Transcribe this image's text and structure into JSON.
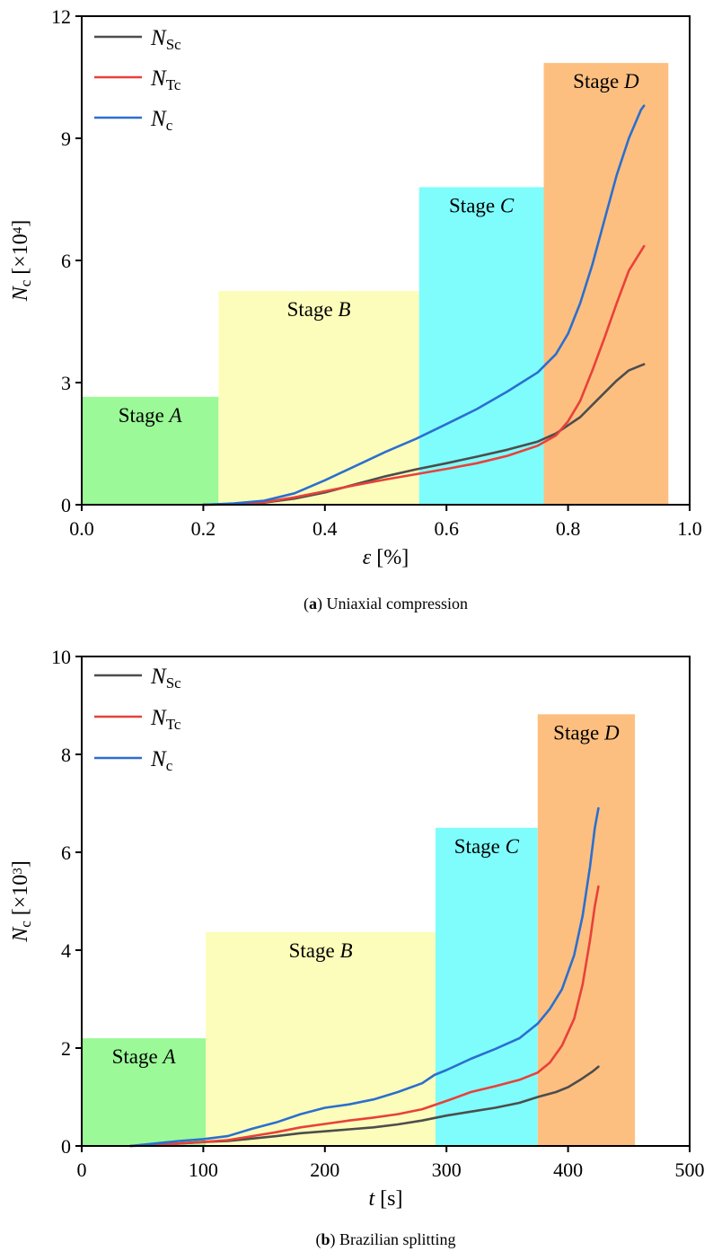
{
  "chart_data": [
    {
      "type": "line",
      "caption": {
        "label": "a",
        "text": " Uniaxial compression"
      },
      "xlabel": {
        "symbol": "ε",
        "unit": " [%]"
      },
      "ylabel": {
        "symbol": "N",
        "sub": "c",
        "unit_prefix": " [×10",
        "exp": "4",
        "unit_suffix": "]"
      },
      "xlim": [
        0,
        1.0
      ],
      "ylim": [
        0,
        12
      ],
      "xticks": [
        "0.0",
        "0.2",
        "0.4",
        "0.6",
        "0.8",
        "1.0"
      ],
      "xtick_values": [
        0,
        0.2,
        0.4,
        0.6,
        0.8,
        1.0
      ],
      "yticks": [
        "0",
        "3",
        "6",
        "9",
        "12"
      ],
      "ytick_values": [
        0,
        3,
        6,
        9,
        12
      ],
      "legend_position": "top-left",
      "stages": [
        {
          "name": "A",
          "x0": 0.0,
          "x1": 0.225,
          "y": 2.65,
          "color": "#9bf997"
        },
        {
          "name": "B",
          "x0": 0.225,
          "x1": 0.555,
          "y": 5.25,
          "color": "#fdfdbb"
        },
        {
          "name": "C",
          "x0": 0.555,
          "x1": 0.76,
          "y": 7.8,
          "color": "#7ffdfd"
        },
        {
          "name": "D",
          "x0": 0.76,
          "x1": 0.965,
          "y": 10.85,
          "color": "#fdbf80"
        }
      ],
      "series": [
        {
          "name": "N",
          "sub": "Sc",
          "color": "#4d4d4d",
          "x": [
            0.2,
            0.25,
            0.3,
            0.35,
            0.4,
            0.45,
            0.5,
            0.55,
            0.6,
            0.65,
            0.7,
            0.75,
            0.78,
            0.8,
            0.82,
            0.85,
            0.88,
            0.9,
            0.925
          ],
          "y": [
            0.0,
            0.01,
            0.05,
            0.15,
            0.3,
            0.5,
            0.7,
            0.87,
            1.02,
            1.18,
            1.35,
            1.55,
            1.75,
            1.95,
            2.15,
            2.6,
            3.05,
            3.3,
            3.45
          ]
        },
        {
          "name": "N",
          "sub": "Tc",
          "color": "#e8413a",
          "x": [
            0.2,
            0.25,
            0.3,
            0.35,
            0.4,
            0.45,
            0.5,
            0.55,
            0.6,
            0.65,
            0.7,
            0.75,
            0.78,
            0.8,
            0.82,
            0.84,
            0.86,
            0.88,
            0.9,
            0.925
          ],
          "y": [
            0.0,
            0.01,
            0.06,
            0.18,
            0.33,
            0.48,
            0.62,
            0.75,
            0.88,
            1.02,
            1.2,
            1.45,
            1.7,
            2.05,
            2.55,
            3.3,
            4.1,
            4.95,
            5.75,
            6.35
          ]
        },
        {
          "name": "N",
          "sub": "c",
          "color": "#2b6fcf",
          "x": [
            0.2,
            0.25,
            0.3,
            0.35,
            0.4,
            0.45,
            0.5,
            0.55,
            0.6,
            0.65,
            0.7,
            0.75,
            0.78,
            0.8,
            0.82,
            0.84,
            0.86,
            0.88,
            0.9,
            0.92,
            0.925
          ],
          "y": [
            0.0,
            0.03,
            0.1,
            0.28,
            0.6,
            0.95,
            1.3,
            1.62,
            1.98,
            2.35,
            2.78,
            3.25,
            3.7,
            4.2,
            4.95,
            5.9,
            7.0,
            8.1,
            9.0,
            9.7,
            9.8
          ]
        }
      ]
    },
    {
      "type": "line",
      "caption": {
        "label": "b",
        "text": " Brazilian splitting"
      },
      "xlabel": {
        "symbol": "t",
        "unit": " [s]"
      },
      "ylabel": {
        "symbol": "N",
        "sub": "c",
        "unit_prefix": " [×10",
        "exp": "3",
        "unit_suffix": "]"
      },
      "xlim": [
        0,
        500
      ],
      "ylim": [
        0,
        10
      ],
      "xticks": [
        "0",
        "100",
        "200",
        "300",
        "400",
        "500"
      ],
      "xtick_values": [
        0,
        100,
        200,
        300,
        400,
        500
      ],
      "yticks": [
        "0",
        "2",
        "4",
        "6",
        "8",
        "10"
      ],
      "ytick_values": [
        0,
        2,
        4,
        6,
        8,
        10
      ],
      "legend_position": "top-left",
      "stages": [
        {
          "name": "A",
          "x0": 0,
          "x1": 102,
          "y": 2.2,
          "color": "#9bf997"
        },
        {
          "name": "B",
          "x0": 102,
          "x1": 291,
          "y": 4.37,
          "color": "#fdfdbb"
        },
        {
          "name": "C",
          "x0": 291,
          "x1": 375,
          "y": 6.5,
          "color": "#7ffdfd"
        },
        {
          "name": "D",
          "x0": 375,
          "x1": 455,
          "y": 8.82,
          "color": "#fdbf80"
        }
      ],
      "series": [
        {
          "name": "N",
          "sub": "Sc",
          "color": "#4d4d4d",
          "x": [
            40,
            60,
            80,
            100,
            120,
            140,
            160,
            180,
            200,
            220,
            240,
            260,
            280,
            300,
            320,
            340,
            360,
            375,
            390,
            400,
            410,
            420,
            425
          ],
          "y": [
            0.0,
            0.02,
            0.05,
            0.08,
            0.1,
            0.15,
            0.2,
            0.26,
            0.3,
            0.34,
            0.38,
            0.44,
            0.52,
            0.62,
            0.7,
            0.78,
            0.88,
            1.0,
            1.1,
            1.2,
            1.35,
            1.52,
            1.62
          ]
        },
        {
          "name": "N",
          "sub": "Tc",
          "color": "#e8413a",
          "x": [
            40,
            60,
            80,
            100,
            120,
            140,
            160,
            180,
            200,
            220,
            240,
            260,
            280,
            300,
            320,
            340,
            360,
            375,
            385,
            395,
            405,
            412,
            418,
            422,
            425
          ],
          "y": [
            0.0,
            0.02,
            0.05,
            0.08,
            0.12,
            0.2,
            0.28,
            0.38,
            0.45,
            0.52,
            0.58,
            0.65,
            0.75,
            0.92,
            1.1,
            1.22,
            1.35,
            1.5,
            1.7,
            2.05,
            2.6,
            3.3,
            4.2,
            4.9,
            5.3
          ]
        },
        {
          "name": "N",
          "sub": "c",
          "color": "#2b6fcf",
          "x": [
            40,
            60,
            80,
            100,
            120,
            140,
            160,
            180,
            200,
            220,
            240,
            260,
            280,
            290,
            300,
            320,
            340,
            360,
            375,
            385,
            395,
            405,
            412,
            418,
            422,
            425
          ],
          "y": [
            0.0,
            0.05,
            0.1,
            0.14,
            0.2,
            0.35,
            0.48,
            0.65,
            0.78,
            0.85,
            0.95,
            1.1,
            1.28,
            1.45,
            1.55,
            1.78,
            1.98,
            2.2,
            2.5,
            2.8,
            3.2,
            3.9,
            4.7,
            5.7,
            6.5,
            6.9
          ]
        }
      ]
    }
  ]
}
